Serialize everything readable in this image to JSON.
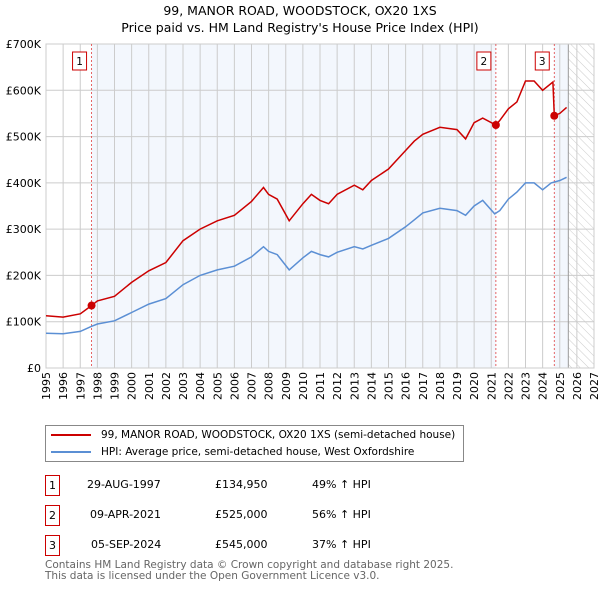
{
  "chart_data": {
    "type": "line",
    "title": "99, MANOR ROAD, WOODSTOCK, OX20 1XS",
    "subtitle": "Price paid vs. HM Land Registry's House Price Index (HPI)",
    "xlim": [
      1995,
      2027
    ],
    "ylim": [
      0,
      700000
    ],
    "yticks": [
      {
        "v": 0,
        "l": "£0"
      },
      {
        "v": 100000,
        "l": "£100K"
      },
      {
        "v": 200000,
        "l": "£200K"
      },
      {
        "v": 300000,
        "l": "£300K"
      },
      {
        "v": 400000,
        "l": "£400K"
      },
      {
        "v": 500000,
        "l": "£500K"
      },
      {
        "v": 600000,
        "l": "£600K"
      },
      {
        "v": 700000,
        "l": "£700K"
      }
    ],
    "xticks": [
      "1995",
      "1996",
      "1997",
      "1998",
      "1999",
      "2000",
      "2001",
      "2002",
      "2003",
      "2004",
      "2005",
      "2006",
      "2007",
      "2008",
      "2009",
      "2010",
      "2011",
      "2012",
      "2013",
      "2014",
      "2015",
      "2016",
      "2017",
      "2018",
      "2019",
      "2020",
      "2021",
      "2022",
      "2023",
      "2024",
      "2025",
      "2026",
      "2027"
    ],
    "grid": true,
    "data_end": 2025.5,
    "series": [
      {
        "name": "99, MANOR ROAD, WOODSTOCK, OX20 1XS (semi-detached house)",
        "color": "#cc0000",
        "x": [
          1995,
          1996,
          1997,
          1997.66,
          1998,
          1999,
          2000,
          2001,
          2002,
          2003,
          2004,
          2005,
          2006,
          2007,
          2007.7,
          2008,
          2008.5,
          2009.2,
          2010,
          2010.5,
          2011,
          2011.5,
          2012,
          2013,
          2013.5,
          2014,
          2015,
          2016,
          2016.5,
          2017,
          2018,
          2019,
          2019.5,
          2020,
          2020.5,
          2021.27,
          2021.5,
          2022,
          2022.5,
          2023,
          2023.5,
          2024,
          2024.6,
          2024.68,
          2025,
          2025.4
        ],
        "y": [
          113,
          110,
          117,
          135,
          145,
          155,
          185,
          210,
          228,
          275,
          300,
          318,
          330,
          360,
          390,
          375,
          365,
          318,
          355,
          375,
          362,
          355,
          375,
          395,
          385,
          405,
          430,
          470,
          490,
          505,
          520,
          515,
          495,
          530,
          540,
          525,
          535,
          560,
          575,
          620,
          620,
          600,
          618,
          545,
          550,
          563
        ]
      },
      {
        "name": "HPI: Average price, semi-detached house, West Oxfordshire",
        "color": "#5b8fd4",
        "x": [
          1995,
          1996,
          1997,
          1997.66,
          1998,
          1999,
          2000,
          2001,
          2002,
          2003,
          2004,
          2005,
          2006,
          2007,
          2007.7,
          2008,
          2008.5,
          2009.2,
          2010,
          2010.5,
          2011,
          2011.5,
          2012,
          2013,
          2013.5,
          2014,
          2015,
          2016,
          2016.5,
          2017,
          2018,
          2019,
          2019.5,
          2020,
          2020.5,
          2021.2,
          2021.5,
          2022,
          2022.5,
          2023,
          2023.5,
          2024,
          2024.5,
          2025,
          2025.4
        ],
        "y": [
          75,
          74,
          79,
          90,
          95,
          102,
          120,
          138,
          150,
          180,
          200,
          212,
          220,
          240,
          262,
          252,
          245,
          212,
          238,
          252,
          245,
          240,
          250,
          262,
          257,
          265,
          280,
          305,
          320,
          335,
          345,
          340,
          330,
          350,
          362,
          333,
          340,
          365,
          380,
          400,
          400,
          385,
          400,
          405,
          412
        ]
      }
    ],
    "sales": [
      {
        "n": "1",
        "x": 1997.66,
        "price": 134950,
        "date": "29-AUG-1997",
        "price_label": "£134,950",
        "hpi": "49% ↑ HPI"
      },
      {
        "n": "2",
        "x": 2021.27,
        "price": 525000,
        "date": "09-APR-2021",
        "price_label": "£525,000",
        "hpi": "56% ↑ HPI"
      },
      {
        "n": "3",
        "x": 2024.68,
        "price": 545000,
        "date": "05-SEP-2024",
        "price_label": "£545,000",
        "hpi": "37% ↑ HPI"
      }
    ]
  },
  "footer": {
    "line1": "Contains HM Land Registry data © Crown copyright and database right 2025.",
    "line2": "This data is licensed under the Open Government Licence v3.0."
  }
}
